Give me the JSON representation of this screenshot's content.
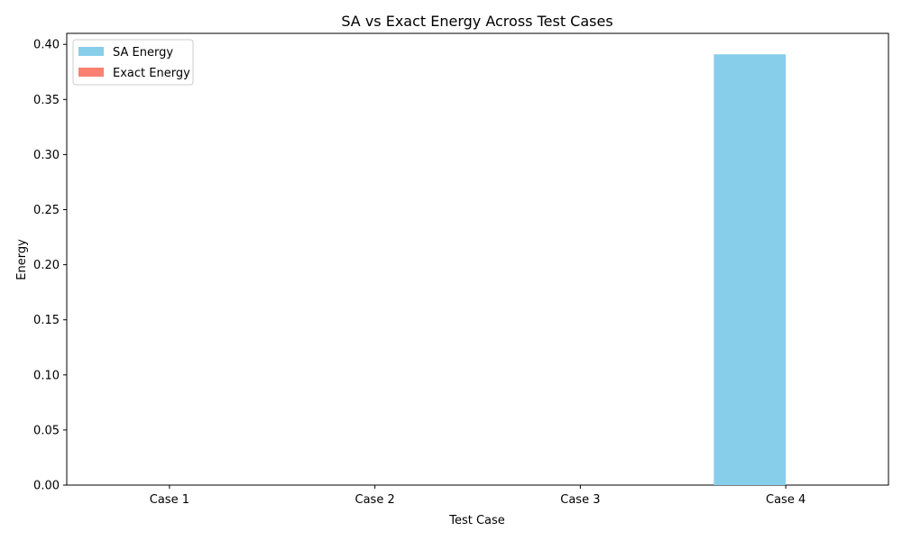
{
  "chart_data": {
    "type": "bar",
    "title": "SA vs Exact Energy Across Test Cases",
    "xlabel": "Test Case",
    "ylabel": "Energy",
    "categories": [
      "Case 1",
      "Case 2",
      "Case 3",
      "Case 4"
    ],
    "series": [
      {
        "name": "SA Energy",
        "color": "#87ceeb",
        "values": [
          0.0,
          0.0,
          0.0,
          0.391
        ]
      },
      {
        "name": "Exact Energy",
        "color": "#fa8072",
        "values": [
          0.0,
          0.0,
          0.0,
          0.0
        ]
      }
    ],
    "ylim": [
      0.0,
      0.41
    ],
    "yticks": [
      "0.00",
      "0.05",
      "0.10",
      "0.15",
      "0.20",
      "0.25",
      "0.30",
      "0.35",
      "0.40"
    ],
    "legend_position": "top-left",
    "grid": false
  }
}
